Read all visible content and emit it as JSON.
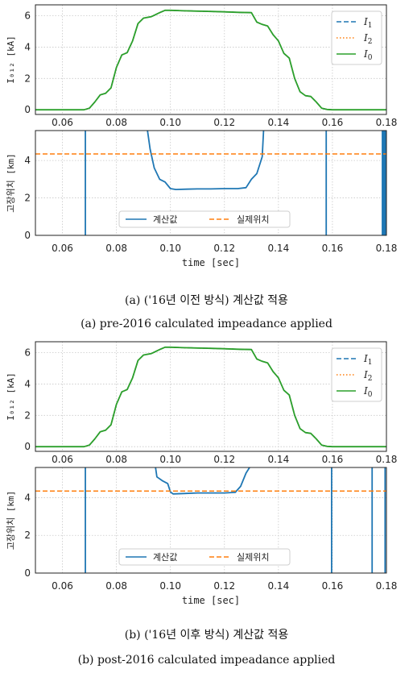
{
  "colors": {
    "I1": "#1f77b4",
    "I2": "#ff7f0e",
    "I0": "#2ca02c",
    "calc": "#1f77b4",
    "actual": "#ff7f0e"
  },
  "captions": {
    "a_kr": "(a) ('16년 이전 방식) 계산값 적용",
    "a_en": "(a) pre-2016 calculated impeadance applied",
    "b_kr": "(b) ('16년 이후 방식) 계산값 적용",
    "b_en": "(b) post-2016 calculated impeadance applied"
  },
  "chart_data": [
    {
      "id": "a-current",
      "type": "line",
      "ylabel": "I₀₁₂ [kA]",
      "xlabel": "",
      "xlim": [
        0.05,
        0.18
      ],
      "ylim": [
        -0.3,
        6.7
      ],
      "xticks": [
        "0.06",
        "0.08",
        "0.10",
        "0.12",
        "0.14",
        "0.16",
        "0.18"
      ],
      "yticks": [
        "0",
        "2",
        "4",
        "6"
      ],
      "legend": "top-right",
      "series": [
        {
          "name": "I1",
          "style": "dashed",
          "color": "#1f77b4",
          "x": [
            0.05,
            0.068,
            0.07,
            0.072,
            0.074,
            0.076,
            0.078,
            0.08,
            0.082,
            0.084,
            0.086,
            0.088,
            0.09,
            0.093,
            0.096,
            0.098,
            0.1,
            0.105,
            0.11,
            0.115,
            0.12,
            0.125,
            0.13,
            0.132,
            0.134,
            0.136,
            0.138,
            0.14,
            0.142,
            0.144,
            0.146,
            0.148,
            0.15,
            0.152,
            0.154,
            0.156,
            0.158,
            0.16,
            0.18
          ],
          "y": [
            0,
            0,
            0.1,
            0.5,
            0.95,
            1.05,
            1.4,
            2.7,
            3.5,
            3.65,
            4.4,
            5.5,
            5.85,
            5.95,
            6.2,
            6.35,
            6.35,
            6.32,
            6.3,
            6.28,
            6.25,
            6.22,
            6.2,
            5.6,
            5.45,
            5.35,
            4.8,
            4.4,
            3.6,
            3.3,
            2.0,
            1.15,
            0.9,
            0.85,
            0.5,
            0.1,
            0.02,
            0,
            0
          ]
        },
        {
          "name": "I2",
          "style": "dotted",
          "color": "#ff7f0e",
          "x": [
            0.05,
            0.068,
            0.07,
            0.072,
            0.074,
            0.076,
            0.078,
            0.08,
            0.082,
            0.084,
            0.086,
            0.088,
            0.09,
            0.093,
            0.096,
            0.098,
            0.1,
            0.105,
            0.11,
            0.115,
            0.12,
            0.125,
            0.13,
            0.132,
            0.134,
            0.136,
            0.138,
            0.14,
            0.142,
            0.144,
            0.146,
            0.148,
            0.15,
            0.152,
            0.154,
            0.156,
            0.158,
            0.16,
            0.18
          ],
          "y": [
            0,
            0,
            0.1,
            0.5,
            0.95,
            1.05,
            1.4,
            2.7,
            3.5,
            3.65,
            4.4,
            5.5,
            5.85,
            5.95,
            6.2,
            6.35,
            6.35,
            6.32,
            6.3,
            6.28,
            6.25,
            6.22,
            6.2,
            5.6,
            5.45,
            5.35,
            4.8,
            4.4,
            3.6,
            3.3,
            2.0,
            1.15,
            0.9,
            0.85,
            0.5,
            0.1,
            0.02,
            0,
            0
          ]
        },
        {
          "name": "I0",
          "style": "solid",
          "color": "#2ca02c",
          "x": [
            0.05,
            0.068,
            0.07,
            0.072,
            0.074,
            0.076,
            0.078,
            0.08,
            0.082,
            0.084,
            0.086,
            0.088,
            0.09,
            0.093,
            0.096,
            0.098,
            0.1,
            0.105,
            0.11,
            0.115,
            0.12,
            0.125,
            0.13,
            0.132,
            0.134,
            0.136,
            0.138,
            0.14,
            0.142,
            0.144,
            0.146,
            0.148,
            0.15,
            0.152,
            0.154,
            0.156,
            0.158,
            0.16,
            0.18
          ],
          "y": [
            0,
            0,
            0.1,
            0.5,
            0.95,
            1.05,
            1.4,
            2.7,
            3.5,
            3.65,
            4.4,
            5.5,
            5.85,
            5.95,
            6.2,
            6.35,
            6.35,
            6.32,
            6.3,
            6.28,
            6.25,
            6.22,
            6.2,
            5.6,
            5.45,
            5.35,
            4.8,
            4.4,
            3.6,
            3.3,
            2.0,
            1.15,
            0.9,
            0.85,
            0.5,
            0.1,
            0.02,
            0,
            0
          ]
        }
      ]
    },
    {
      "id": "a-location",
      "type": "line",
      "ylabel": "고장위치 [km]",
      "xlabel": "time [sec]",
      "xlim": [
        0.05,
        0.18
      ],
      "ylim": [
        0,
        5.6
      ],
      "xticks": [
        "0.06",
        "0.08",
        "0.10",
        "0.12",
        "0.14",
        "0.16",
        "0.18"
      ],
      "yticks": [
        "0",
        "2",
        "4"
      ],
      "legend": "bottom-center",
      "series": [
        {
          "name": "계산값",
          "style": "solid",
          "color": "#1f77b4",
          "x": [
            0.0915,
            0.0925,
            0.094,
            0.096,
            0.098,
            0.1,
            0.102,
            0.106,
            0.11,
            0.115,
            0.12,
            0.125,
            0.128,
            0.13,
            0.132,
            0.134,
            0.1345
          ],
          "y": [
            5.6,
            4.6,
            3.6,
            3.0,
            2.85,
            2.5,
            2.45,
            2.47,
            2.48,
            2.48,
            2.5,
            2.5,
            2.55,
            3.0,
            3.3,
            4.2,
            5.6
          ]
        },
        {
          "name": "실제위치",
          "style": "dashed",
          "color": "#ff7f0e",
          "x": [
            0.05,
            0.18
          ],
          "y": [
            4.35,
            4.35
          ]
        }
      ],
      "spikes_x": [
        0.0685,
        0.1577,
        0.1785,
        0.1788,
        0.1792,
        0.1795,
        0.1798
      ]
    },
    {
      "id": "b-current",
      "type": "line",
      "ylabel": "I₀₁₂ [kA]",
      "xlabel": "",
      "xlim": [
        0.05,
        0.18
      ],
      "ylim": [
        -0.3,
        6.7
      ],
      "xticks": [
        "0.06",
        "0.08",
        "0.10",
        "0.12",
        "0.14",
        "0.16",
        "0.18"
      ],
      "yticks": [
        "0",
        "2",
        "4",
        "6"
      ],
      "legend": "top-right",
      "series": [
        {
          "name": "I1",
          "style": "dashed",
          "color": "#1f77b4",
          "x": [
            0.05,
            0.068,
            0.07,
            0.072,
            0.074,
            0.076,
            0.078,
            0.08,
            0.082,
            0.084,
            0.086,
            0.088,
            0.09,
            0.093,
            0.096,
            0.098,
            0.1,
            0.105,
            0.11,
            0.115,
            0.12,
            0.125,
            0.13,
            0.132,
            0.134,
            0.136,
            0.138,
            0.14,
            0.142,
            0.144,
            0.146,
            0.148,
            0.15,
            0.152,
            0.154,
            0.156,
            0.158,
            0.16,
            0.18
          ],
          "y": [
            0,
            0,
            0.1,
            0.5,
            0.95,
            1.05,
            1.4,
            2.7,
            3.5,
            3.65,
            4.4,
            5.5,
            5.85,
            5.95,
            6.2,
            6.35,
            6.35,
            6.32,
            6.3,
            6.28,
            6.25,
            6.22,
            6.2,
            5.6,
            5.45,
            5.35,
            4.8,
            4.4,
            3.6,
            3.3,
            2.0,
            1.15,
            0.9,
            0.85,
            0.5,
            0.1,
            0.02,
            0,
            0
          ]
        },
        {
          "name": "I2",
          "style": "dotted",
          "color": "#ff7f0e",
          "x": [
            0.05,
            0.068,
            0.07,
            0.072,
            0.074,
            0.076,
            0.078,
            0.08,
            0.082,
            0.084,
            0.086,
            0.088,
            0.09,
            0.093,
            0.096,
            0.098,
            0.1,
            0.105,
            0.11,
            0.115,
            0.12,
            0.125,
            0.13,
            0.132,
            0.134,
            0.136,
            0.138,
            0.14,
            0.142,
            0.144,
            0.146,
            0.148,
            0.15,
            0.152,
            0.154,
            0.156,
            0.158,
            0.16,
            0.18
          ],
          "y": [
            0,
            0,
            0.1,
            0.5,
            0.95,
            1.05,
            1.4,
            2.7,
            3.5,
            3.65,
            4.4,
            5.5,
            5.85,
            5.95,
            6.2,
            6.35,
            6.35,
            6.32,
            6.3,
            6.28,
            6.25,
            6.22,
            6.2,
            5.6,
            5.45,
            5.35,
            4.8,
            4.4,
            3.6,
            3.3,
            2.0,
            1.15,
            0.9,
            0.85,
            0.5,
            0.1,
            0.02,
            0,
            0
          ]
        },
        {
          "name": "I0",
          "style": "solid",
          "color": "#2ca02c",
          "x": [
            0.05,
            0.068,
            0.07,
            0.072,
            0.074,
            0.076,
            0.078,
            0.08,
            0.082,
            0.084,
            0.086,
            0.088,
            0.09,
            0.093,
            0.096,
            0.098,
            0.1,
            0.105,
            0.11,
            0.115,
            0.12,
            0.125,
            0.13,
            0.132,
            0.134,
            0.136,
            0.138,
            0.14,
            0.142,
            0.144,
            0.146,
            0.148,
            0.15,
            0.152,
            0.154,
            0.156,
            0.158,
            0.16,
            0.18
          ],
          "y": [
            0,
            0,
            0.1,
            0.5,
            0.95,
            1.05,
            1.4,
            2.7,
            3.5,
            3.65,
            4.4,
            5.5,
            5.85,
            5.95,
            6.2,
            6.35,
            6.35,
            6.32,
            6.3,
            6.28,
            6.25,
            6.22,
            6.2,
            5.6,
            5.45,
            5.35,
            4.8,
            4.4,
            3.6,
            3.3,
            2.0,
            1.15,
            0.9,
            0.85,
            0.5,
            0.1,
            0.02,
            0,
            0
          ]
        }
      ]
    },
    {
      "id": "b-location",
      "type": "line",
      "ylabel": "고장위치 [km]",
      "xlabel": "time [sec]",
      "xlim": [
        0.05,
        0.18
      ],
      "ylim": [
        0,
        5.6
      ],
      "xticks": [
        "0.06",
        "0.08",
        "0.10",
        "0.12",
        "0.14",
        "0.16",
        "0.18"
      ],
      "yticks": [
        "0",
        "2",
        "4"
      ],
      "legend": "bottom-center",
      "series": [
        {
          "name": "계산값",
          "style": "solid",
          "color": "#1f77b4",
          "x": [
            0.0945,
            0.095,
            0.097,
            0.099,
            0.1,
            0.101,
            0.105,
            0.11,
            0.115,
            0.12,
            0.124,
            0.126,
            0.128,
            0.1293
          ],
          "y": [
            5.6,
            5.1,
            4.9,
            4.75,
            4.3,
            4.2,
            4.22,
            4.25,
            4.25,
            4.25,
            4.28,
            4.6,
            5.3,
            5.6
          ]
        },
        {
          "name": "실제위치",
          "style": "dashed",
          "color": "#ff7f0e",
          "x": [
            0.05,
            0.18
          ],
          "y": [
            4.35,
            4.35
          ]
        }
      ],
      "spikes_x": [
        0.0685,
        0.1597,
        0.1747,
        0.1795
      ]
    }
  ]
}
